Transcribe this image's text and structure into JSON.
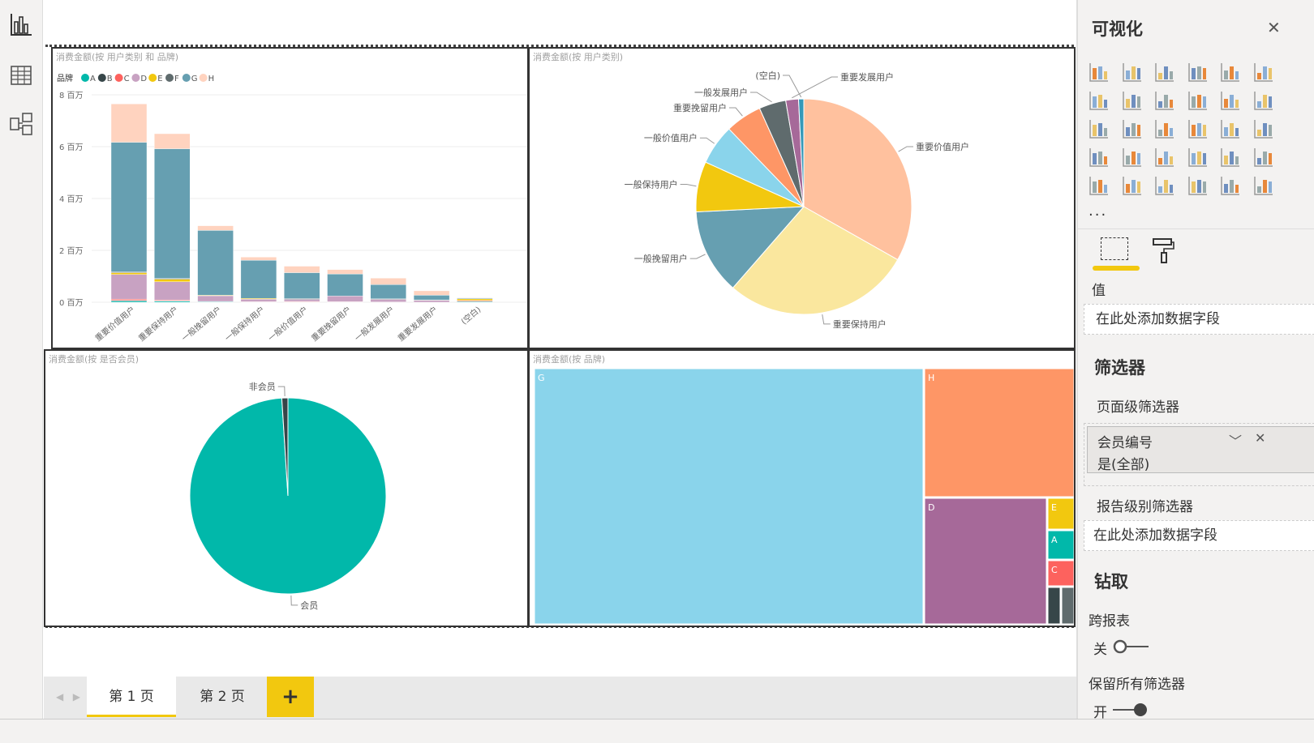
{
  "rail": {
    "items": [
      "report-view",
      "data-view",
      "model-view"
    ]
  },
  "pages": {
    "tabs": [
      "第 1 页",
      "第 2 页"
    ],
    "add": "+"
  },
  "pane": {
    "title": "可视化",
    "more": "...",
    "values_label": "值",
    "values_placeholder": "在此处添加数据字段",
    "filters_title": "筛选器",
    "page_filters": "页面级筛选器",
    "filter_card": {
      "field": "会员编号",
      "value": "是(全部)"
    },
    "report_filters": "报告级别筛选器",
    "report_placeholder": "在此处添加数据字段",
    "drill_title": "钻取",
    "cross_report": "跨报表",
    "cross_report_state": "关",
    "keep_filters": "保留所有筛选器",
    "keep_filters_state": "开",
    "gallery": [
      "stacked-bar",
      "stacked-column",
      "clustered-bar",
      "clustered-column",
      "100-stacked-bar",
      "100-stacked-column",
      "line",
      "area",
      "stacked-area",
      "line-column",
      "line-clustered-column",
      "ribbon",
      "waterfall",
      "scatter",
      "pie",
      "donut",
      "treemap",
      "map",
      "filled-map",
      "funnel",
      "gauge",
      "card",
      "multi-row-card",
      "kpi",
      "slicer",
      "table",
      "matrix",
      "r-visual",
      "python-visual",
      "arcgis"
    ]
  },
  "colors": {
    "A": "#01b8aa",
    "B": "#374649",
    "C": "#fd625e",
    "D": "#c8a2c2",
    "E": "#f2c80f",
    "F": "#5f6b6d",
    "G": "#669fb1",
    "H": "#ffd3bf",
    "accent": "#f2c80f"
  },
  "chart_data": [
    {
      "type": "bar",
      "stacked": true,
      "title": "消费金额(按 用户类别 和 品牌)",
      "legend_title": "品牌",
      "legend": [
        "A",
        "B",
        "C",
        "D",
        "E",
        "F",
        "G",
        "H"
      ],
      "categories": [
        "重要价值用户",
        "重要保持用户",
        "一般挽留用户",
        "一般保持用户",
        "一般价值用户",
        "重要挽留用户",
        "一般发展用户",
        "重要发展用户",
        "(空白)"
      ],
      "yticks": [
        "0 百万",
        "2 百万",
        "4 百万",
        "6 百万",
        "8 百万"
      ],
      "ylim": [
        0,
        8
      ],
      "unit": "百万",
      "series": [
        {
          "name": "A",
          "values": [
            0.05,
            0.04,
            0.02,
            0.01,
            0.01,
            0.01,
            0.01,
            0.0,
            0.03
          ]
        },
        {
          "name": "B",
          "values": [
            0.02,
            0.02,
            0.0,
            0.0,
            0.0,
            0.0,
            0.0,
            0.0,
            0.01
          ]
        },
        {
          "name": "C",
          "values": [
            0.05,
            0.03,
            0.01,
            0.01,
            0.02,
            0.01,
            0.0,
            0.0,
            0.03
          ]
        },
        {
          "name": "D",
          "values": [
            0.95,
            0.7,
            0.22,
            0.1,
            0.08,
            0.22,
            0.1,
            0.07,
            0.0
          ]
        },
        {
          "name": "E",
          "values": [
            0.07,
            0.1,
            0.02,
            0.03,
            0.0,
            0.0,
            0.0,
            0.0,
            0.06
          ]
        },
        {
          "name": "F",
          "values": [
            0.03,
            0.03,
            0.0,
            0.0,
            0.03,
            0.0,
            0.02,
            0.02,
            0.0
          ]
        },
        {
          "name": "G",
          "values": [
            5.0,
            5.0,
            2.5,
            1.47,
            1.0,
            0.85,
            0.55,
            0.18,
            0.03
          ]
        },
        {
          "name": "H",
          "values": [
            1.48,
            0.58,
            0.18,
            0.12,
            0.25,
            0.17,
            0.25,
            0.17,
            0.02
          ]
        }
      ]
    },
    {
      "type": "pie",
      "title": "消费金额(按 用户类别)",
      "labels": [
        "重要价值用户",
        "重要保持用户",
        "一般挽留用户",
        "一般保持用户",
        "一般价值用户",
        "重要挽留用户",
        "一般发展用户",
        "重要发展用户",
        "(空白)"
      ],
      "values": [
        7.65,
        6.5,
        2.95,
        1.74,
        1.39,
        1.26,
        0.93,
        0.44,
        0.18
      ],
      "colors": [
        "#ffc19e",
        "#fae79e",
        "#669fb1",
        "#f2c80f",
        "#8ad4eb",
        "#fe9666",
        "#5f6b6d",
        "#a66999",
        "#3599b8"
      ]
    },
    {
      "type": "pie",
      "title": "消费金额(按 是否会员)",
      "labels": [
        "会员",
        "非会员"
      ],
      "values": [
        99,
        1
      ],
      "colors": [
        "#01b8aa",
        "#374649"
      ]
    },
    {
      "type": "treemap",
      "title": "消费金额(按 品牌)",
      "labels": [
        "G",
        "H",
        "D",
        "E",
        "A",
        "C",
        "B",
        "F"
      ],
      "values": [
        16.6,
        3.3,
        2.5,
        0.15,
        0.13,
        0.12,
        0.08,
        0.08
      ],
      "colors": [
        "#8ad4eb",
        "#fe9666",
        "#a66999",
        "#f2c80f",
        "#01b8aa",
        "#fd625e",
        "#374649",
        "#5f6b6d"
      ]
    }
  ]
}
